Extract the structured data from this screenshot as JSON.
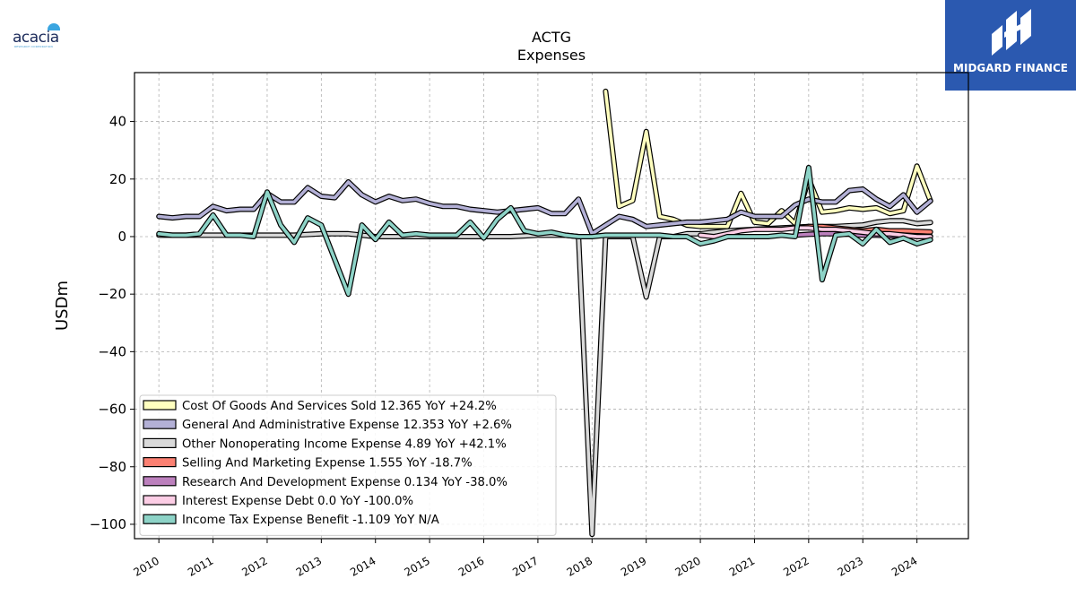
{
  "branding": {
    "left_logo_text": "acacia",
    "left_logo_subtext": "RESEARCH CORPORATION",
    "right_logo_text": "MIDGARD FINANCE"
  },
  "colors": {
    "cost_of_goods": "#ffffbf",
    "general_admin": "#b3b0d6",
    "other_nonoperating": "#d9d9d9",
    "selling_marketing": "#fb8072",
    "research_development": "#bc80bd",
    "interest_expense": "#fccde5",
    "income_tax": "#8dd3c7"
  },
  "chart_data": {
    "type": "line",
    "title": "ACTG",
    "subtitle": "Expenses",
    "ylabel": "USDm",
    "xlabel": "",
    "ylim": [
      -105,
      57
    ],
    "xlim": [
      2009.55,
      2024.95
    ],
    "grid": true,
    "legend_position": "lower-left",
    "x_ticks": [
      "2010",
      "2011",
      "2012",
      "2013",
      "2014",
      "2015",
      "2016",
      "2017",
      "2018",
      "2019",
      "2020",
      "2021",
      "2022",
      "2023",
      "2024"
    ],
    "y_ticks": [
      "40",
      "20",
      "0",
      "−20",
      "−40",
      "−60",
      "−80",
      "−100"
    ],
    "y_tick_values": [
      40,
      20,
      0,
      -20,
      -40,
      -60,
      -80,
      -100
    ],
    "series": [
      {
        "name": "Cost Of Goods And Services Sold  12.365 YoY +24.2%",
        "color": "#ffffbf",
        "x": [
          2018.25,
          2018.5,
          2018.75,
          2019.0,
          2019.25,
          2019.5,
          2019.75,
          2020.0,
          2020.25,
          2020.5,
          2020.75,
          2021.0,
          2021.25,
          2021.5,
          2021.75,
          2022.0,
          2022.25,
          2022.5,
          2022.75,
          2023.0,
          2023.25,
          2023.5,
          2023.75,
          2024.0,
          2024.25
        ],
        "y": [
          50.5,
          10.5,
          12.5,
          36.5,
          7.0,
          6.0,
          4.0,
          3.5,
          3.5,
          3.5,
          15.0,
          5.0,
          4.5,
          9.0,
          4.5,
          20.0,
          8.5,
          9.0,
          10.0,
          9.5,
          10.0,
          8.0,
          9.0,
          24.5,
          12.4
        ]
      },
      {
        "name": "General And Administrative Expense  12.353 YoY +2.6%",
        "color": "#b3b0d6",
        "x": [
          2010.0,
          2010.25,
          2010.5,
          2010.75,
          2011.0,
          2011.25,
          2011.5,
          2011.75,
          2012.0,
          2012.25,
          2012.5,
          2012.75,
          2013.0,
          2013.25,
          2013.5,
          2013.75,
          2014.0,
          2014.25,
          2014.5,
          2014.75,
          2015.0,
          2015.25,
          2015.5,
          2015.75,
          2016.0,
          2016.25,
          2016.5,
          2016.75,
          2017.0,
          2017.25,
          2017.5,
          2017.75,
          2018.0,
          2018.25,
          2018.5,
          2018.75,
          2019.0,
          2019.25,
          2019.5,
          2019.75,
          2020.0,
          2020.25,
          2020.5,
          2020.75,
          2021.0,
          2021.25,
          2021.5,
          2021.75,
          2022.0,
          2022.25,
          2022.5,
          2022.75,
          2023.0,
          2023.25,
          2023.5,
          2023.75,
          2024.0,
          2024.25
        ],
        "y": [
          7.0,
          6.5,
          7.0,
          7.0,
          10.5,
          9.0,
          9.5,
          9.5,
          15.0,
          12.0,
          12.0,
          17.0,
          14.0,
          13.5,
          19.0,
          14.5,
          12.0,
          14.0,
          12.5,
          13.0,
          11.5,
          10.5,
          10.5,
          9.5,
          9.0,
          8.5,
          9.0,
          9.5,
          10.0,
          8.0,
          8.0,
          13.0,
          1.0,
          4.0,
          7.0,
          6.0,
          3.5,
          4.0,
          4.5,
          5.0,
          5.0,
          5.5,
          6.0,
          8.5,
          7.0,
          7.0,
          7.0,
          11.0,
          13.0,
          12.0,
          12.0,
          16.0,
          16.5,
          13.0,
          10.5,
          14.5,
          8.5,
          12.4
        ]
      },
      {
        "name": "Other Nonoperating Income Expense  4.89 YoY +42.1%",
        "color": "#d9d9d9",
        "x": [
          2010.0,
          2010.5,
          2011.0,
          2011.5,
          2012.0,
          2012.5,
          2013.0,
          2013.5,
          2014.0,
          2014.5,
          2015.0,
          2015.5,
          2016.0,
          2016.5,
          2017.0,
          2017.5,
          2017.75,
          2018.0,
          2018.25,
          2018.5,
          2018.75,
          2019.0,
          2019.25,
          2019.5,
          2019.75,
          2020.0,
          2020.5,
          2021.0,
          2021.5,
          2022.0,
          2022.5,
          2023.0,
          2023.25,
          2023.5,
          2023.75,
          2024.0,
          2024.25
        ],
        "y": [
          0.5,
          0.5,
          0.5,
          0.5,
          0.5,
          0.5,
          1.0,
          1.0,
          0.0,
          0.0,
          0.0,
          0.0,
          0.0,
          0.0,
          0.5,
          0.5,
          0.0,
          -103.5,
          0.0,
          0.0,
          0.0,
          -21.0,
          0.0,
          0.0,
          1.0,
          1.0,
          2.0,
          2.5,
          3.0,
          3.5,
          3.5,
          4.0,
          5.0,
          5.5,
          5.5,
          4.5,
          4.9
        ]
      },
      {
        "name": "Selling And Marketing Expense  1.555 YoY -18.7%",
        "color": "#fb8072",
        "x": [
          2021.75,
          2022.0,
          2022.25,
          2022.5,
          2022.75,
          2023.0,
          2023.25,
          2023.5,
          2023.75,
          2024.0,
          2024.25
        ],
        "y": [
          3.0,
          3.5,
          3.5,
          3.0,
          2.5,
          2.0,
          2.5,
          2.0,
          2.0,
          1.8,
          1.6
        ]
      },
      {
        "name": "Research And Development Expense  0.134 YoY -38.0%",
        "color": "#bc80bd",
        "x": [
          2021.75,
          2022.0,
          2022.25,
          2022.5,
          2022.75,
          2023.0,
          2023.25,
          2023.5,
          2023.75,
          2024.0,
          2024.25
        ],
        "y": [
          0.5,
          0.8,
          1.0,
          1.0,
          0.8,
          0.5,
          0.5,
          0.3,
          0.3,
          0.2,
          0.1
        ]
      },
      {
        "name": "Interest Expense Debt  0.0 YoY -100.0%",
        "color": "#fccde5",
        "x": [
          2020.0,
          2020.25,
          2020.5,
          2020.75,
          2021.0,
          2021.25,
          2021.5,
          2021.75,
          2022.0,
          2022.25,
          2022.5,
          2022.75,
          2023.0,
          2023.25,
          2023.5,
          2023.75,
          2024.0,
          2024.25
        ],
        "y": [
          0.5,
          0.0,
          1.0,
          2.0,
          2.5,
          2.5,
          2.5,
          3.0,
          3.0,
          2.5,
          2.5,
          2.0,
          1.5,
          1.0,
          1.0,
          0.5,
          0.0,
          0.0
        ]
      },
      {
        "name": "Income Tax Expense Benefit  -1.109 YoY N/A",
        "color": "#8dd3c7",
        "x": [
          2010.0,
          2010.25,
          2010.5,
          2010.75,
          2011.0,
          2011.25,
          2011.5,
          2011.75,
          2012.0,
          2012.25,
          2012.5,
          2012.75,
          2013.0,
          2013.25,
          2013.5,
          2013.75,
          2014.0,
          2014.25,
          2014.5,
          2014.75,
          2015.0,
          2015.25,
          2015.5,
          2015.75,
          2016.0,
          2016.25,
          2016.5,
          2016.75,
          2017.0,
          2017.25,
          2017.5,
          2017.75,
          2018.0,
          2018.25,
          2018.5,
          2018.75,
          2019.0,
          2019.25,
          2019.5,
          2019.75,
          2020.0,
          2020.25,
          2020.5,
          2020.75,
          2021.0,
          2021.25,
          2021.5,
          2021.75,
          2022.0,
          2022.25,
          2022.5,
          2022.75,
          2023.0,
          2023.25,
          2023.5,
          2023.75,
          2024.0,
          2024.25
        ],
        "y": [
          1.0,
          0.5,
          0.5,
          1.0,
          7.5,
          0.5,
          0.5,
          0.0,
          15.5,
          4.0,
          -2.0,
          6.5,
          4.0,
          -8.0,
          -20.0,
          4.0,
          -1.0,
          5.0,
          0.5,
          1.0,
          0.5,
          0.5,
          0.5,
          5.0,
          -0.5,
          6.0,
          10.0,
          2.0,
          1.0,
          1.5,
          0.5,
          0.0,
          0.0,
          0.5,
          0.5,
          0.5,
          0.5,
          0.5,
          0.0,
          0.0,
          -2.5,
          -1.5,
          0.0,
          0.0,
          0.0,
          0.0,
          0.5,
          0.0,
          24.0,
          -15.0,
          0.5,
          1.0,
          -2.5,
          2.5,
          -2.0,
          -0.5,
          -2.5,
          -1.1
        ]
      }
    ]
  }
}
